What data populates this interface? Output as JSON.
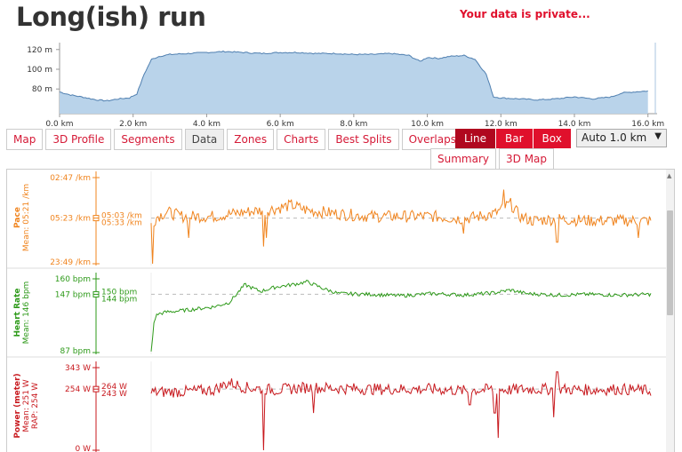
{
  "title": "Long(ish) run",
  "privacy_note": "Your data is private...",
  "colors": {
    "accent": "#e0102c",
    "pace": "#f0841e",
    "heart_rate": "#2e9a1a",
    "power": "#c8191e",
    "elevation_fill": "#b9d3ea",
    "elevation_line": "#4f7fb0"
  },
  "tabs": [
    {
      "label": "Map"
    },
    {
      "label": "3D Profile"
    },
    {
      "label": "Segments"
    },
    {
      "label": "Data",
      "active": true
    },
    {
      "label": "Zones"
    },
    {
      "label": "Charts"
    },
    {
      "label": "Best Splits"
    },
    {
      "label": "Overlaps"
    }
  ],
  "chart_types": [
    {
      "label": "Line",
      "active": true
    },
    {
      "label": "Bar"
    },
    {
      "label": "Box"
    }
  ],
  "split_select": {
    "value": "Auto 1.0 km"
  },
  "subtabs": [
    {
      "label": "Summary"
    },
    {
      "label": "3D Map"
    }
  ],
  "chart_data": [
    {
      "type": "area",
      "name": "elevation",
      "x": [
        0,
        0.3,
        0.6,
        1.0,
        1.3,
        1.6,
        1.9,
        2.1,
        2.3,
        2.5,
        2.7,
        3.0,
        3.5,
        4.0,
        4.5,
        5.0,
        5.5,
        6.0,
        6.5,
        7.0,
        7.5,
        8.0,
        8.5,
        9.0,
        9.5,
        9.8,
        10.0,
        10.3,
        10.6,
        11.0,
        11.3,
        11.6,
        11.8,
        12.0,
        12.5,
        13.0,
        13.5,
        14.0,
        14.5,
        15.0,
        15.3,
        15.6,
        16.0
      ],
      "y": [
        77,
        74,
        72,
        69,
        68,
        70,
        71,
        75,
        95,
        110,
        113,
        115,
        116,
        117,
        118,
        117,
        116,
        117,
        117,
        116,
        116,
        115,
        115,
        116,
        114,
        108,
        112,
        111,
        113,
        114,
        110,
        95,
        72,
        71,
        70,
        69,
        70,
        72,
        70,
        72,
        76,
        77,
        78
      ],
      "xlim": [
        0,
        16.2
      ],
      "ylim": [
        55,
        127
      ],
      "x_ticks": [
        "0.0 km",
        "2.0 km",
        "4.0 km",
        "6.0 km",
        "8.0 km",
        "10.0 km",
        "12.0 km",
        "14.0 km",
        "16.0 km"
      ],
      "y_ticks": [
        "120 m",
        "100 m",
        "80 m"
      ]
    },
    {
      "type": "line",
      "name": "pace",
      "ylabel": "Pace",
      "mean_label": "Mean: 05:21 /km",
      "top_label": "02:47 /km",
      "mean_tick": "05:23 /km",
      "bottom_label": "23:49 /km",
      "marker_labels": [
        "05:03 /km",
        "05:33 /km"
      ],
      "baseline": 0.53,
      "x": [
        0,
        0.2,
        0.5,
        1.0,
        2.0,
        3.0,
        4.0,
        4.5,
        5.0,
        5.5,
        6.0,
        7.0,
        8.0,
        9.0,
        10.0,
        11.0,
        11.5,
        11.8,
        12.2,
        13.0,
        14.0,
        15.0,
        16.0
      ],
      "y": [
        0.45,
        0.55,
        0.6,
        0.55,
        0.55,
        0.6,
        0.64,
        0.68,
        0.62,
        0.6,
        0.58,
        0.55,
        0.55,
        0.55,
        0.52,
        0.58,
        0.7,
        0.55,
        0.5,
        0.52,
        0.5,
        0.5,
        0.5
      ],
      "spikes": [
        [
          0.05,
          0.0
        ],
        [
          1.2,
          0.3
        ],
        [
          3.6,
          0.2
        ],
        [
          3.7,
          0.3
        ],
        [
          10.0,
          0.35
        ],
        [
          11.3,
          0.86
        ],
        [
          13.0,
          0.25
        ],
        [
          15.6,
          0.3
        ]
      ]
    },
    {
      "type": "line",
      "name": "heart_rate",
      "ylabel": "Heart Rate",
      "mean_label": "Mean: 146 bpm",
      "top_label": "160 bpm",
      "mean_tick": "147 bpm",
      "bottom_label": "87 bpm",
      "marker_labels": [
        "150 bpm",
        "144 bpm"
      ],
      "baseline": 0.79,
      "x": [
        0,
        0.1,
        0.2,
        0.5,
        1.0,
        2.0,
        2.5,
        3.0,
        3.5,
        4.0,
        4.5,
        5.0,
        5.5,
        6.0,
        7.0,
        8.0,
        9.0,
        10.0,
        11.0,
        11.5,
        12.0,
        13.0,
        14.0,
        15.0,
        16.0
      ],
      "y": [
        0.0,
        0.45,
        0.52,
        0.55,
        0.57,
        0.62,
        0.68,
        0.92,
        0.83,
        0.89,
        0.92,
        0.96,
        0.87,
        0.8,
        0.79,
        0.77,
        0.8,
        0.78,
        0.81,
        0.85,
        0.8,
        0.78,
        0.79,
        0.78,
        0.79
      ],
      "spikes": []
    },
    {
      "type": "line",
      "name": "power",
      "ylabel": "Power (meter)",
      "mean_label": "Mean: 251 W",
      "rap_label": "RAP: 254 W",
      "top_label": "343 W",
      "mean_tick": "254 W",
      "bottom_label": "0 W",
      "marker_labels": [
        "264 W",
        "243 W"
      ],
      "baseline": 0.74,
      "x": [
        0,
        1.0,
        2.0,
        2.5,
        3.0,
        4.0,
        5.0,
        6.0,
        7.0,
        8.0,
        9.0,
        10.0,
        11.0,
        11.5,
        12.0,
        13.0,
        14.0,
        15.0,
        16.0
      ],
      "y": [
        0.7,
        0.71,
        0.73,
        0.82,
        0.76,
        0.73,
        0.76,
        0.75,
        0.74,
        0.74,
        0.74,
        0.72,
        0.74,
        0.73,
        0.74,
        0.74,
        0.73,
        0.74,
        0.72
      ],
      "spikes": [
        [
          3.6,
          0.0
        ],
        [
          5.2,
          0.45
        ],
        [
          10.2,
          0.55
        ],
        [
          11.0,
          0.45
        ],
        [
          11.1,
          0.15
        ],
        [
          12.9,
          0.4
        ],
        [
          13.0,
          0.95
        ]
      ]
    }
  ]
}
